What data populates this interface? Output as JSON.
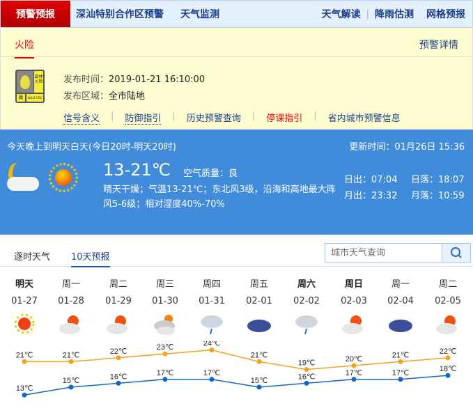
{
  "topnav": {
    "active": "预警预报",
    "items": [
      "深汕特别合作区预警",
      "天气监测"
    ],
    "right": [
      "天气解读",
      "降雨估测",
      "网格预报"
    ]
  },
  "warning": {
    "tab": "火险",
    "detail": "预警详情",
    "badge_text": "森林火险",
    "badge_level": "黄",
    "badge_en": "WILD FIRE",
    "time_label": "发布时间：",
    "time": "2019-01-21 16:10:00",
    "area_label": "发布区域：",
    "area": "全市陆地",
    "links": [
      "信号含义",
      "防御指引",
      "历史预警查询",
      "停课指引",
      "省内城市预警信息"
    ]
  },
  "today": {
    "period": "今天晚上到明天白天(今日20时-明天20时)",
    "update": "更新时间：01月26日 15:36",
    "temp": "13-21℃",
    "aqi_label": "空气质量：",
    "aqi": "良",
    "desc": "晴天干燥；气温13-21℃；东北风3级，沿海和高地最大阵风5-6级；相对湿度40%-70%",
    "sunrise": "日出：07:04",
    "sunset": "日落：18:07",
    "moonrise": "月出：23:32",
    "moonset": "月落：10:59"
  },
  "tabs": [
    "逐时天气",
    "10天预报"
  ],
  "search": {
    "placeholder": "城市天气查询"
  },
  "colors": {
    "high": "#f5a21b",
    "low": "#1565c8"
  },
  "chart_data": {
    "type": "line",
    "categories": [
      "明天",
      "周一",
      "周二",
      "周三",
      "周四",
      "周五",
      "周六",
      "周日",
      "周一",
      "周二"
    ],
    "dates": [
      "01-27",
      "01-28",
      "01-29",
      "01-30",
      "01-31",
      "02-01",
      "02-02",
      "02-03",
      "02-04",
      "02-05"
    ],
    "bold": [
      true,
      false,
      false,
      false,
      false,
      false,
      true,
      true,
      false,
      false
    ],
    "icons": [
      "sunny",
      "partly-cloudy",
      "partly-cloudy",
      "cloudy",
      "rain",
      "overcast",
      "rain",
      "partly-cloudy",
      "overcast",
      "partly-cloudy"
    ],
    "series": [
      {
        "values": [
          21,
          21,
          22,
          23,
          24,
          21,
          19,
          20,
          21,
          22
        ]
      },
      {
        "values": [
          13,
          15,
          16,
          17,
          17,
          15,
          16,
          17,
          17,
          18
        ]
      }
    ],
    "unit": "℃"
  }
}
